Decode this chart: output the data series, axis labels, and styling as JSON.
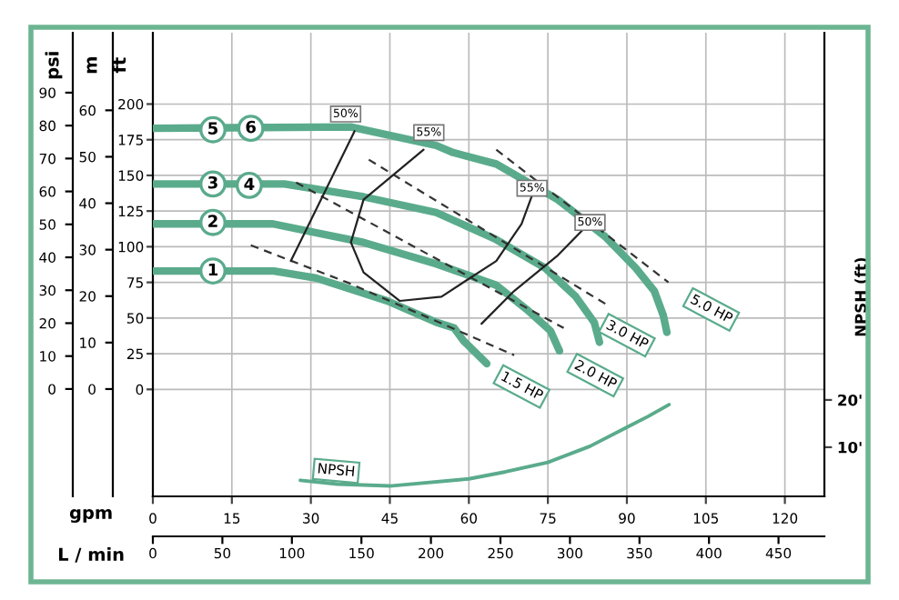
{
  "chart_data": [
    {
      "type": "line",
      "xlabel": "gpm",
      "ylabel": "ft",
      "y2label": "psi",
      "y3label": "m",
      "x2label": "L / min",
      "xlim": [
        0,
        127.5
      ],
      "xticks": [
        0,
        15,
        30,
        45,
        60,
        75,
        90,
        105,
        120
      ],
      "x2lim": [
        0,
        483
      ],
      "x2ticks": [
        0,
        50,
        100,
        150,
        200,
        250,
        300,
        350,
        400,
        450
      ],
      "ylim": [
        -75,
        250
      ],
      "yticks": [
        0,
        25,
        50,
        75,
        100,
        125,
        150,
        175,
        200
      ],
      "y2lim": [
        -32.6,
        108.2
      ],
      "y2ticks": [
        0,
        10,
        20,
        30,
        40,
        50,
        60,
        70,
        80,
        90
      ],
      "y3lim": [
        -23.1,
        76.7
      ],
      "y3ticks": [
        0,
        10,
        20,
        30,
        40,
        50,
        60
      ],
      "grid": true,
      "series": [
        {
          "color": "#5aab8c",
          "x": [
            0,
            23,
            31,
            44.5,
            53.8,
            57.2,
            59,
            63.4
          ],
          "values": [
            83,
            83,
            78,
            62,
            47,
            43,
            34,
            18
          ]
        },
        {
          "color": "#5aab8c",
          "x": [
            0,
            22.8,
            40,
            53.8,
            65.2,
            71,
            75.5,
            77.2
          ],
          "values": [
            116,
            116,
            103,
            88,
            73,
            56,
            41,
            27
          ]
        },
        {
          "color": "#5aab8c",
          "x": [
            0,
            25,
            40,
            53.8,
            65.2,
            74.5,
            80.3,
            83.8,
            84.8
          ],
          "values": [
            144,
            144,
            135,
            124,
            105,
            85,
            65,
            47,
            33
          ]
        },
        {
          "color": "#5aab8c",
          "x": [
            0,
            37.6,
            53.8,
            57,
            65.2,
            76.9,
            85.9,
            91.7,
            95.2,
            96.9,
            97.6
          ],
          "values": [
            183,
            184,
            171,
            166,
            158,
            133,
            107,
            85,
            69,
            52,
            40
          ]
        },
        {
          "color": "#333333",
          "line_style": "dashed",
          "x": [
            18.6,
            36.9,
            68.6
          ],
          "values": [
            101,
            75,
            24
          ]
        },
        {
          "color": "#333333",
          "line_style": "dashed",
          "x": [
            27.2,
            78
          ],
          "values": [
            145,
            43
          ]
        },
        {
          "color": "#333333",
          "line_style": "dashed",
          "x": [
            41,
            85.9
          ],
          "values": [
            161,
            60
          ]
        },
        {
          "color": "#333333",
          "line_style": "dashed",
          "x": [
            65.2,
            97.9
          ],
          "values": [
            168,
            75
          ]
        },
        {
          "color": "#222222",
          "x": [
            38.3,
            26.2
          ],
          "values": [
            181,
            90
          ]
        },
        {
          "color": "#222222",
          "x": [
            51.4,
            40,
            37.6,
            40,
            46.9,
            54.8,
            65.2,
            70,
            72
          ],
          "values": [
            168,
            133,
            103,
            82,
            62,
            65,
            90,
            116,
            136
          ]
        },
        {
          "color": "#222222",
          "x": [
            83,
            76.9,
            68.6,
            62.4
          ],
          "values": [
            117,
            94,
            69,
            46
          ]
        }
      ],
      "annotations": [
        {
          "text": "1",
          "x": 11.4,
          "y": 83
        },
        {
          "text": "2",
          "x": 11.4,
          "y": 117
        },
        {
          "text": "3",
          "x": 11.4,
          "y": 144
        },
        {
          "text": "4",
          "x": 18.3,
          "y": 143
        },
        {
          "text": "5",
          "x": 11.4,
          "y": 182
        },
        {
          "text": "6",
          "x": 18.6,
          "y": 183
        },
        {
          "text": "50%",
          "x": 36.6,
          "y": 193
        },
        {
          "text": "55%",
          "x": 52.4,
          "y": 180
        },
        {
          "text": "55%",
          "x": 72,
          "y": 141
        },
        {
          "text": "50%",
          "x": 83,
          "y": 117
        },
        {
          "text": "1.5 HP",
          "x": 70,
          "y": 2
        },
        {
          "text": "2.0 HP",
          "x": 84,
          "y": 10
        },
        {
          "text": "3.0 HP",
          "x": 90,
          "y": 38
        },
        {
          "text": "5.0 HP",
          "x": 106,
          "y": 56
        }
      ]
    },
    {
      "type": "line",
      "tick_labels": "y",
      "ylabel": "NPSH (ft)",
      "xlim": [
        0,
        127.5
      ],
      "ylim": [
        -0.4,
        97.7
      ],
      "yticks": [
        {
          "value": 10,
          "label": "10'"
        },
        {
          "value": 20,
          "label": "20'"
        }
      ],
      "series": [
        {
          "color": "#5aab8c",
          "x": [
            28,
            35,
            45,
            60,
            67,
            75,
            83,
            90,
            94,
            98
          ],
          "values": [
            3.0,
            2.2,
            1.8,
            3.3,
            4.8,
            6.8,
            10.2,
            14.2,
            16.5,
            19
          ]
        }
      ],
      "annotations": [
        {
          "text": "NPSH",
          "x": 34.8,
          "y": 5
        }
      ]
    }
  ]
}
